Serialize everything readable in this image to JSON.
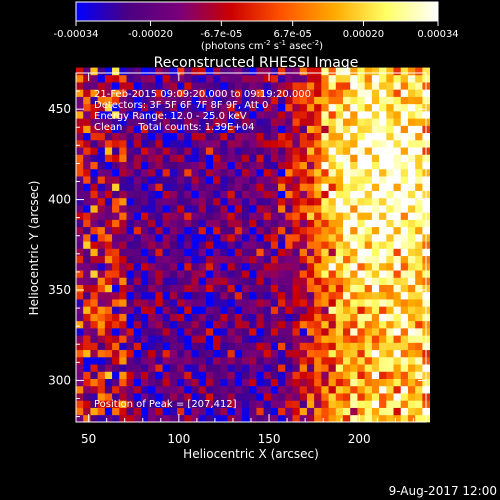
{
  "chart_data": {
    "type": "heatmap",
    "title": "Reconstructed RHESSI Image",
    "xlabel": "Heliocentric X (arcsec)",
    "ylabel": "Heliocentric Y (arcsec)",
    "xlim": [
      43,
      237
    ],
    "ylim": [
      277,
      470
    ],
    "x_ticks": [
      50,
      100,
      150,
      200
    ],
    "y_ticks": [
      300,
      350,
      400,
      450
    ],
    "grid": false,
    "colorbar": {
      "vmin": -0.00034,
      "vmax": 0.00034,
      "tick_values": [
        -0.00034,
        -0.0002,
        -6.7e-05,
        6.7e-05,
        0.0002,
        0.00034
      ],
      "tick_labels": [
        "-0.00034",
        "-0.00020",
        "-6.7e-05",
        "6.7e-05",
        "0.00020",
        "0.00034"
      ],
      "label_prefix": "(photons cm",
      "label_sup1": "-2",
      "label_mid": " s",
      "label_sup2": "-1",
      "label_mid2": " asec",
      "label_sup3": "-2",
      "label_suffix": ")",
      "colors": [
        "#0000ff",
        "#4b0082",
        "#7a007a",
        "#cc0000",
        "#ff5500",
        "#ffaa00",
        "#ffff66",
        "#ffffff"
      ]
    },
    "annotations": [
      "21-Feb-2015 09:09:20.000 to 09:19:20.000",
      "Detectors: 3F 5F 6F 7F 8F 9F, Att 0",
      "Energy Range: 12.0 - 25.0 keV",
      "Clean     Total counts: 1.39E+04"
    ],
    "peak_label": "Position of Peak = [207,412]",
    "peak": {
      "x": 207,
      "y": 412
    },
    "pixel_size_arcsec": 4,
    "footer_date": "9-Aug-2017 12:00"
  }
}
